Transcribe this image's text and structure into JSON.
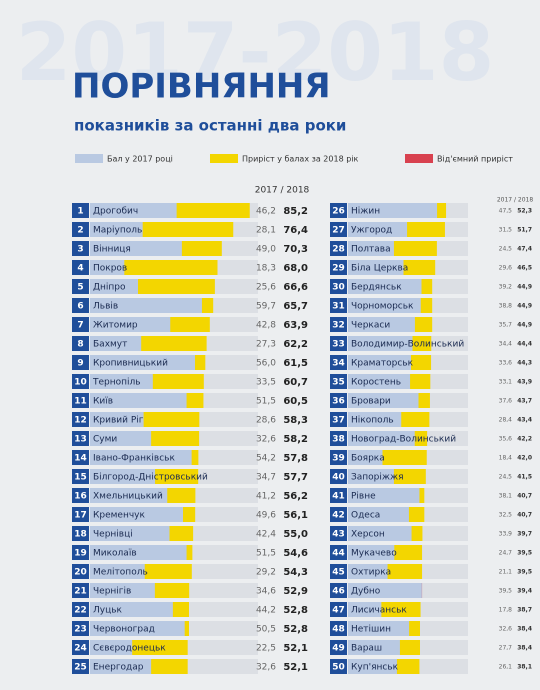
{
  "chart_data": {
    "type": "bar",
    "orientation": "horizontal",
    "watermark": "2017-2018",
    "title": "ПОРІВНЯННЯ",
    "subtitle": "показників за останні два роки",
    "column_header": "2017 / 2018",
    "ranks": [
      1,
      2,
      3,
      4,
      5,
      6,
      7,
      8,
      9,
      10,
      11,
      12,
      13,
      14,
      15,
      16,
      17,
      18,
      19,
      20,
      21,
      22,
      23,
      24,
      25,
      26,
      27,
      28,
      29,
      30,
      31,
      32,
      33,
      34,
      35,
      36,
      37,
      38,
      39,
      40,
      41,
      42,
      43,
      44,
      45,
      46,
      47,
      48,
      49,
      50
    ],
    "categories": [
      "Дрогобич",
      "Маріуполь",
      "Вінниця",
      "Покров",
      "Дніпро",
      "Львів",
      "Житомир",
      "Бахмут",
      "Кропивницький",
      "Тернопіль",
      "Київ",
      "Кривий Ріг",
      "Суми",
      "Івано-Франківськ",
      "Білгород-Дністровський",
      "Хмельницький",
      "Кременчук",
      "Чернівці",
      "Миколаїв",
      "Мелітополь",
      "Чернігів",
      "Луцьк",
      "Червоноград",
      "Сєвєродонецьк",
      "Енергодар",
      "Ніжин",
      "Ужгород",
      "Полтава",
      "Біла Церква",
      "Бердянськ",
      "Чорноморськ",
      "Черкаси",
      "Володимир-Волинський",
      "Краматорськ",
      "Коростень",
      "Бровари",
      "Нікополь",
      "Новоград-Волинський",
      "Боярка",
      "Запоріжжя",
      "Рівне",
      "Одеса",
      "Херсон",
      "Мукачево",
      "Охтирка",
      "Дубно",
      "Лисичанськ",
      "Нетішин",
      "Вараш",
      "Куп'янськ"
    ],
    "series": [
      {
        "name": "Бал у 2017 році",
        "color": "#b9c9e2",
        "values": [
          46.2,
          28.1,
          49.0,
          18.3,
          25.6,
          59.7,
          42.8,
          27.3,
          56.0,
          33.5,
          51.5,
          28.6,
          32.6,
          54.2,
          34.7,
          41.2,
          49.6,
          42.4,
          51.5,
          29.2,
          34.6,
          44.2,
          50.5,
          22.5,
          32.6,
          47.5,
          31.5,
          24.5,
          29.6,
          39.2,
          38.8,
          35.7,
          34.4,
          33.6,
          33.1,
          37.6,
          28.4,
          35.6,
          18.4,
          24.5,
          38.1,
          32.5,
          33.9,
          24.7,
          21.1,
          39.5,
          17.8,
          32.6,
          27.7,
          26.1
        ],
        "value_labels": [
          "46,2",
          "28,1",
          "49,0",
          "18,3",
          "25,6",
          "59,7",
          "42,8",
          "27,3",
          "56,0",
          "33,5",
          "51,5",
          "28,6",
          "32,6",
          "54,2",
          "34,7",
          "41,2",
          "49,6",
          "42,4",
          "51,5",
          "29,2",
          "34,6",
          "44,2",
          "50,5",
          "22,5",
          "32,6",
          "47,5",
          "31,5",
          "24,5",
          "29,6",
          "39,2",
          "38,8",
          "35,7",
          "34,4",
          "33,6",
          "33,1",
          "37,6",
          "28,4",
          "35,6",
          "18,4",
          "24,5",
          "38,1",
          "32,5",
          "33,9",
          "24,7",
          "21,1",
          "39,5",
          "17,8",
          "32,6",
          "27,7",
          "26,1"
        ]
      },
      {
        "name": "Приріст у балах за 2018 рік",
        "color": "#f3d600",
        "values": [
          85.2,
          76.4,
          70.3,
          68.0,
          66.6,
          65.7,
          63.9,
          62.2,
          61.5,
          60.7,
          60.5,
          58.3,
          58.2,
          57.8,
          57.7,
          56.2,
          56.1,
          55.0,
          54.6,
          54.3,
          52.9,
          52.8,
          52.8,
          52.1,
          52.1,
          52.3,
          51.7,
          47.4,
          46.5,
          44.9,
          44.9,
          44.9,
          44.4,
          44.3,
          43.9,
          43.7,
          43.4,
          42.2,
          42.0,
          41.5,
          40.7,
          40.7,
          39.7,
          39.5,
          39.5,
          39.4,
          38.7,
          38.4,
          38.4,
          38.1
        ],
        "value_labels": [
          "85,2",
          "76,4",
          "70,3",
          "68,0",
          "66,6",
          "65,7",
          "63,9",
          "62,2",
          "61,5",
          "60,7",
          "60,5",
          "58,3",
          "58,2",
          "57,8",
          "57,7",
          "56,2",
          "56,1",
          "55,0",
          "54,6",
          "54,3",
          "52,9",
          "52,8",
          "52,8",
          "52,1",
          "52,1",
          "52,3",
          "51,7",
          "47,4",
          "46,5",
          "44,9",
          "44,9",
          "44,9",
          "44,4",
          "44,3",
          "43,9",
          "43,7",
          "43,4",
          "42,2",
          "42,0",
          "41,5",
          "40,7",
          "40,7",
          "39,7",
          "39,5",
          "39,5",
          "39,4",
          "38,7",
          "38,4",
          "38,4",
          "38,1"
        ]
      }
    ],
    "negative_label": "Від'ємний приріст",
    "negative_color": "#d8414f",
    "xlim": [
      0,
      88
    ]
  }
}
